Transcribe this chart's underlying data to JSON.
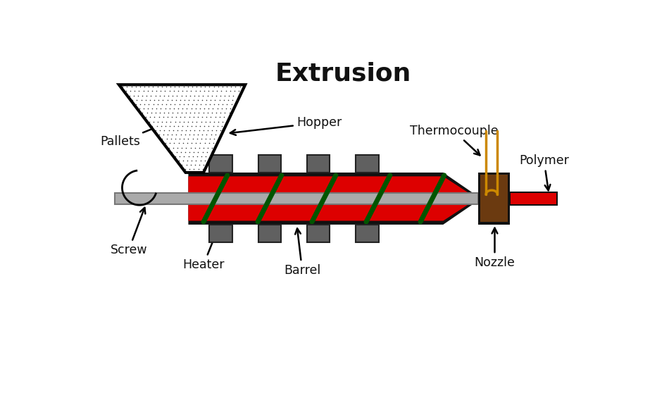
{
  "title": "Extrusion",
  "title_fontsize": 26,
  "bg_color": "#ffffff",
  "colors": {
    "barrel_red": "#dd0000",
    "barrel_outline": "#111111",
    "screw_gray": "#aaaaaa",
    "screw_thread": "#005500",
    "heater_gray": "#606060",
    "nozzle_brown": "#6B3A10",
    "thermocouple": "#cc8800",
    "polymer_red": "#dd0000",
    "text_color": "#111111"
  },
  "labels": {
    "hopper": "Hopper",
    "pallets": "Pallets",
    "screw": "Screw",
    "heater": "Heater",
    "barrel": "Barrel",
    "thermocouple": "Thermocouple",
    "nozzle": "Nozzle",
    "polymer": "Polymer"
  },
  "figsize": [
    9.5,
    5.85
  ],
  "dpi": 100
}
